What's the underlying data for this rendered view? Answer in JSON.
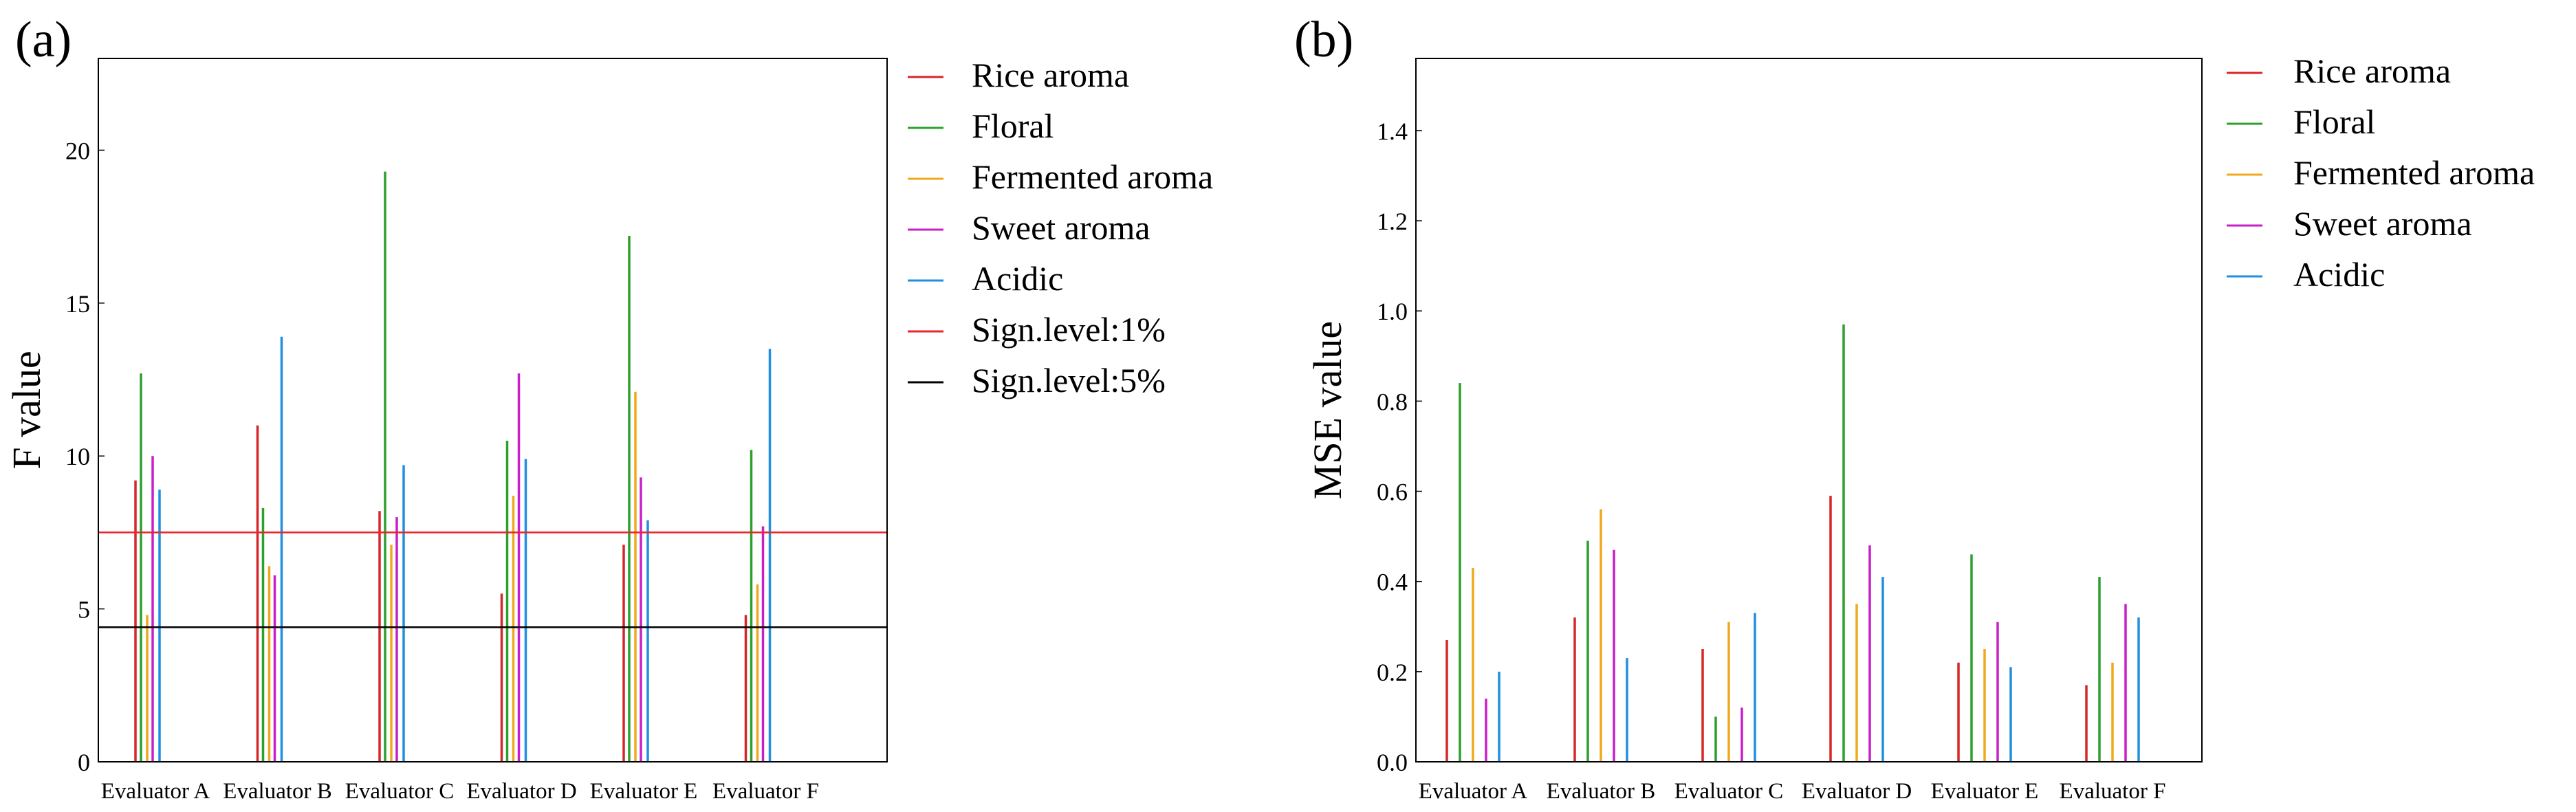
{
  "chart_data": [
    {
      "type": "bar",
      "panel_label": "(a)",
      "ylabel": "F value",
      "ylim": [
        0,
        23
      ],
      "yticks": [
        0,
        5,
        10,
        15,
        20
      ],
      "ytick_labels": [
        "0",
        "5",
        "10",
        "15",
        "20"
      ],
      "categories": [
        "Evaluator A",
        "Evaluator B",
        "Evaluator C",
        "Evaluator D",
        "Evaluator E",
        "Evaluator F"
      ],
      "series": [
        {
          "name": "Rice aroma",
          "color": "#d62728",
          "values": [
            9.2,
            11.0,
            8.2,
            5.5,
            7.1,
            4.8
          ]
        },
        {
          "name": "Floral",
          "color": "#2ca02c",
          "values": [
            12.7,
            8.3,
            19.3,
            10.5,
            17.2,
            10.2
          ]
        },
        {
          "name": "Fermented aroma",
          "color": "#f0a81c",
          "values": [
            4.8,
            6.4,
            7.1,
            8.7,
            12.1,
            5.8
          ]
        },
        {
          "name": "Sweet aroma",
          "color": "#c91fc9",
          "values": [
            10.0,
            6.1,
            8.0,
            12.7,
            9.3,
            7.7
          ]
        },
        {
          "name": "Acidic",
          "color": "#1f8fe0",
          "values": [
            8.9,
            13.9,
            9.7,
            9.9,
            7.9,
            13.5
          ]
        }
      ],
      "reference_lines": [
        {
          "name": "Sign.level:1%",
          "color": "#e8262b",
          "value": 7.5
        },
        {
          "name": "Sign.level:5%",
          "color": "#000000",
          "value": 4.4
        }
      ],
      "legend": [
        "Rice aroma",
        "Floral",
        "Fermented aroma",
        "Sweet aroma",
        "Acidic",
        "Sign.level:1%",
        "Sign.level:5%"
      ]
    },
    {
      "type": "bar",
      "panel_label": "(b)",
      "ylabel": "MSE value",
      "ylim": [
        0,
        1.56
      ],
      "yticks": [
        0.0,
        0.2,
        0.4,
        0.6,
        0.8,
        1.0,
        1.2,
        1.4
      ],
      "ytick_labels": [
        "0.0",
        "0.2",
        "0.4",
        "0.6",
        "0.8",
        "1.0",
        "1.2",
        "1.4"
      ],
      "categories": [
        "Evaluator A",
        "Evaluator B",
        "Evaluator C",
        "Evaluator D",
        "Evaluator E",
        "Evaluator F"
      ],
      "series": [
        {
          "name": "Rice aroma",
          "color": "#d62728",
          "values": [
            0.27,
            0.32,
            0.25,
            0.59,
            0.22,
            0.17
          ]
        },
        {
          "name": "Floral",
          "color": "#2ca02c",
          "values": [
            0.84,
            0.49,
            0.1,
            0.97,
            0.46,
            0.41
          ]
        },
        {
          "name": "Fermented aroma",
          "color": "#f0a81c",
          "values": [
            0.43,
            0.56,
            0.31,
            0.35,
            0.25,
            0.22
          ]
        },
        {
          "name": "Sweet aroma",
          "color": "#c91fc9",
          "values": [
            0.14,
            0.47,
            0.12,
            0.48,
            0.31,
            0.35
          ]
        },
        {
          "name": "Acidic",
          "color": "#1f8fe0",
          "values": [
            0.2,
            0.23,
            0.33,
            0.41,
            0.21,
            0.32
          ]
        }
      ],
      "reference_lines": [],
      "legend": [
        "Rice aroma",
        "Floral",
        "Fermented aroma",
        "Sweet aroma",
        "Acidic"
      ]
    }
  ]
}
